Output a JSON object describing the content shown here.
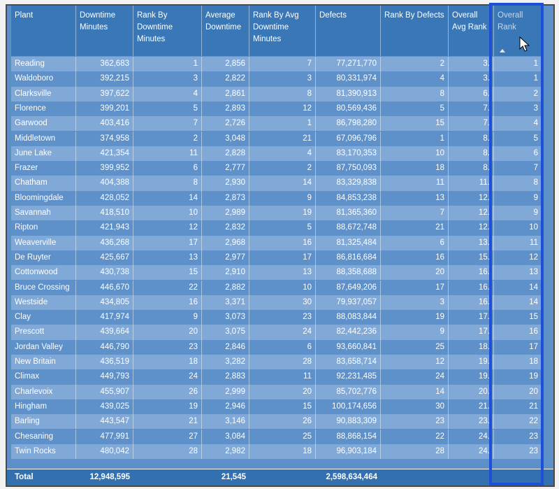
{
  "table": {
    "headers": [
      "Plant",
      "Downtime Minutes",
      "Rank By Downtime Minutes",
      "Average Downtime",
      "Rank By Avg Downtime Minutes",
      "Defects",
      "Rank By Defects",
      "Overall Avg Rank",
      "Overall Rank"
    ],
    "rows": [
      [
        "Reading",
        "362,683",
        "1",
        "2,856",
        "7",
        "77,271,770",
        "2",
        "3.",
        "1"
      ],
      [
        "Waldoboro",
        "392,215",
        "3",
        "2,822",
        "3",
        "80,331,974",
        "4",
        "3.",
        "1"
      ],
      [
        "Clarksville",
        "397,622",
        "4",
        "2,861",
        "8",
        "81,390,913",
        "8",
        "6.",
        "2"
      ],
      [
        "Florence",
        "399,201",
        "5",
        "2,893",
        "12",
        "80,569,436",
        "5",
        "7.",
        "3"
      ],
      [
        "Garwood",
        "403,416",
        "7",
        "2,726",
        "1",
        "86,798,280",
        "15",
        "7.",
        "4"
      ],
      [
        "Middletown",
        "374,958",
        "2",
        "3,048",
        "21",
        "67,096,796",
        "1",
        "8.",
        "5"
      ],
      [
        "June Lake",
        "421,354",
        "11",
        "2,828",
        "4",
        "83,170,353",
        "10",
        "8.",
        "6"
      ],
      [
        "Frazer",
        "399,952",
        "6",
        "2,777",
        "2",
        "87,750,093",
        "18",
        "8.",
        "7"
      ],
      [
        "Chatham",
        "404,388",
        "8",
        "2,930",
        "14",
        "83,329,838",
        "11",
        "11.",
        "8"
      ],
      [
        "Bloomingdale",
        "428,052",
        "14",
        "2,873",
        "9",
        "84,853,238",
        "13",
        "12.",
        "9"
      ],
      [
        "Savannah",
        "418,510",
        "10",
        "2,989",
        "19",
        "81,365,360",
        "7",
        "12.",
        "9"
      ],
      [
        "Ripton",
        "421,943",
        "12",
        "2,832",
        "5",
        "88,672,748",
        "21",
        "12.",
        "10"
      ],
      [
        "Weaverville",
        "436,268",
        "17",
        "2,968",
        "16",
        "81,325,484",
        "6",
        "13.",
        "11"
      ],
      [
        "De Ruyter",
        "425,667",
        "13",
        "2,977",
        "17",
        "86,816,684",
        "16",
        "15.",
        "12"
      ],
      [
        "Cottonwood",
        "430,738",
        "15",
        "2,910",
        "13",
        "88,358,688",
        "20",
        "16.",
        "13"
      ],
      [
        "Bruce Crossing",
        "446,670",
        "22",
        "2,882",
        "10",
        "87,649,206",
        "17",
        "16.",
        "14"
      ],
      [
        "Westside",
        "434,805",
        "16",
        "3,371",
        "30",
        "79,937,057",
        "3",
        "16.",
        "14"
      ],
      [
        "Clay",
        "417,974",
        "9",
        "3,073",
        "23",
        "88,083,844",
        "19",
        "17.",
        "15"
      ],
      [
        "Prescott",
        "439,664",
        "20",
        "3,075",
        "24",
        "82,442,236",
        "9",
        "17.",
        "16"
      ],
      [
        "Jordan Valley",
        "446,790",
        "23",
        "2,846",
        "6",
        "93,660,841",
        "25",
        "18.",
        "17"
      ],
      [
        "New Britain",
        "436,519",
        "18",
        "3,282",
        "28",
        "83,658,714",
        "12",
        "19.",
        "18"
      ],
      [
        "Climax",
        "449,793",
        "24",
        "2,883",
        "11",
        "92,231,485",
        "24",
        "19.",
        "19"
      ],
      [
        "Charlevoix",
        "455,907",
        "26",
        "2,999",
        "20",
        "85,702,776",
        "14",
        "20.",
        "20"
      ],
      [
        "Hingham",
        "439,025",
        "19",
        "2,946",
        "15",
        "100,174,656",
        "30",
        "21.",
        "21"
      ],
      [
        "Barling",
        "443,547",
        "21",
        "3,146",
        "26",
        "90,883,309",
        "23",
        "23.",
        "22"
      ],
      [
        "Chesaning",
        "477,991",
        "27",
        "3,084",
        "25",
        "88,868,154",
        "22",
        "24.",
        "23"
      ],
      [
        "Twin Rocks",
        "480,042",
        "28",
        "2,982",
        "18",
        "96,903,184",
        "28",
        "24.",
        "23"
      ]
    ],
    "total": {
      "label": "Total",
      "downtime_minutes": "12,948,595",
      "average_downtime": "21,545",
      "defects": "2,598,634,464"
    }
  }
}
